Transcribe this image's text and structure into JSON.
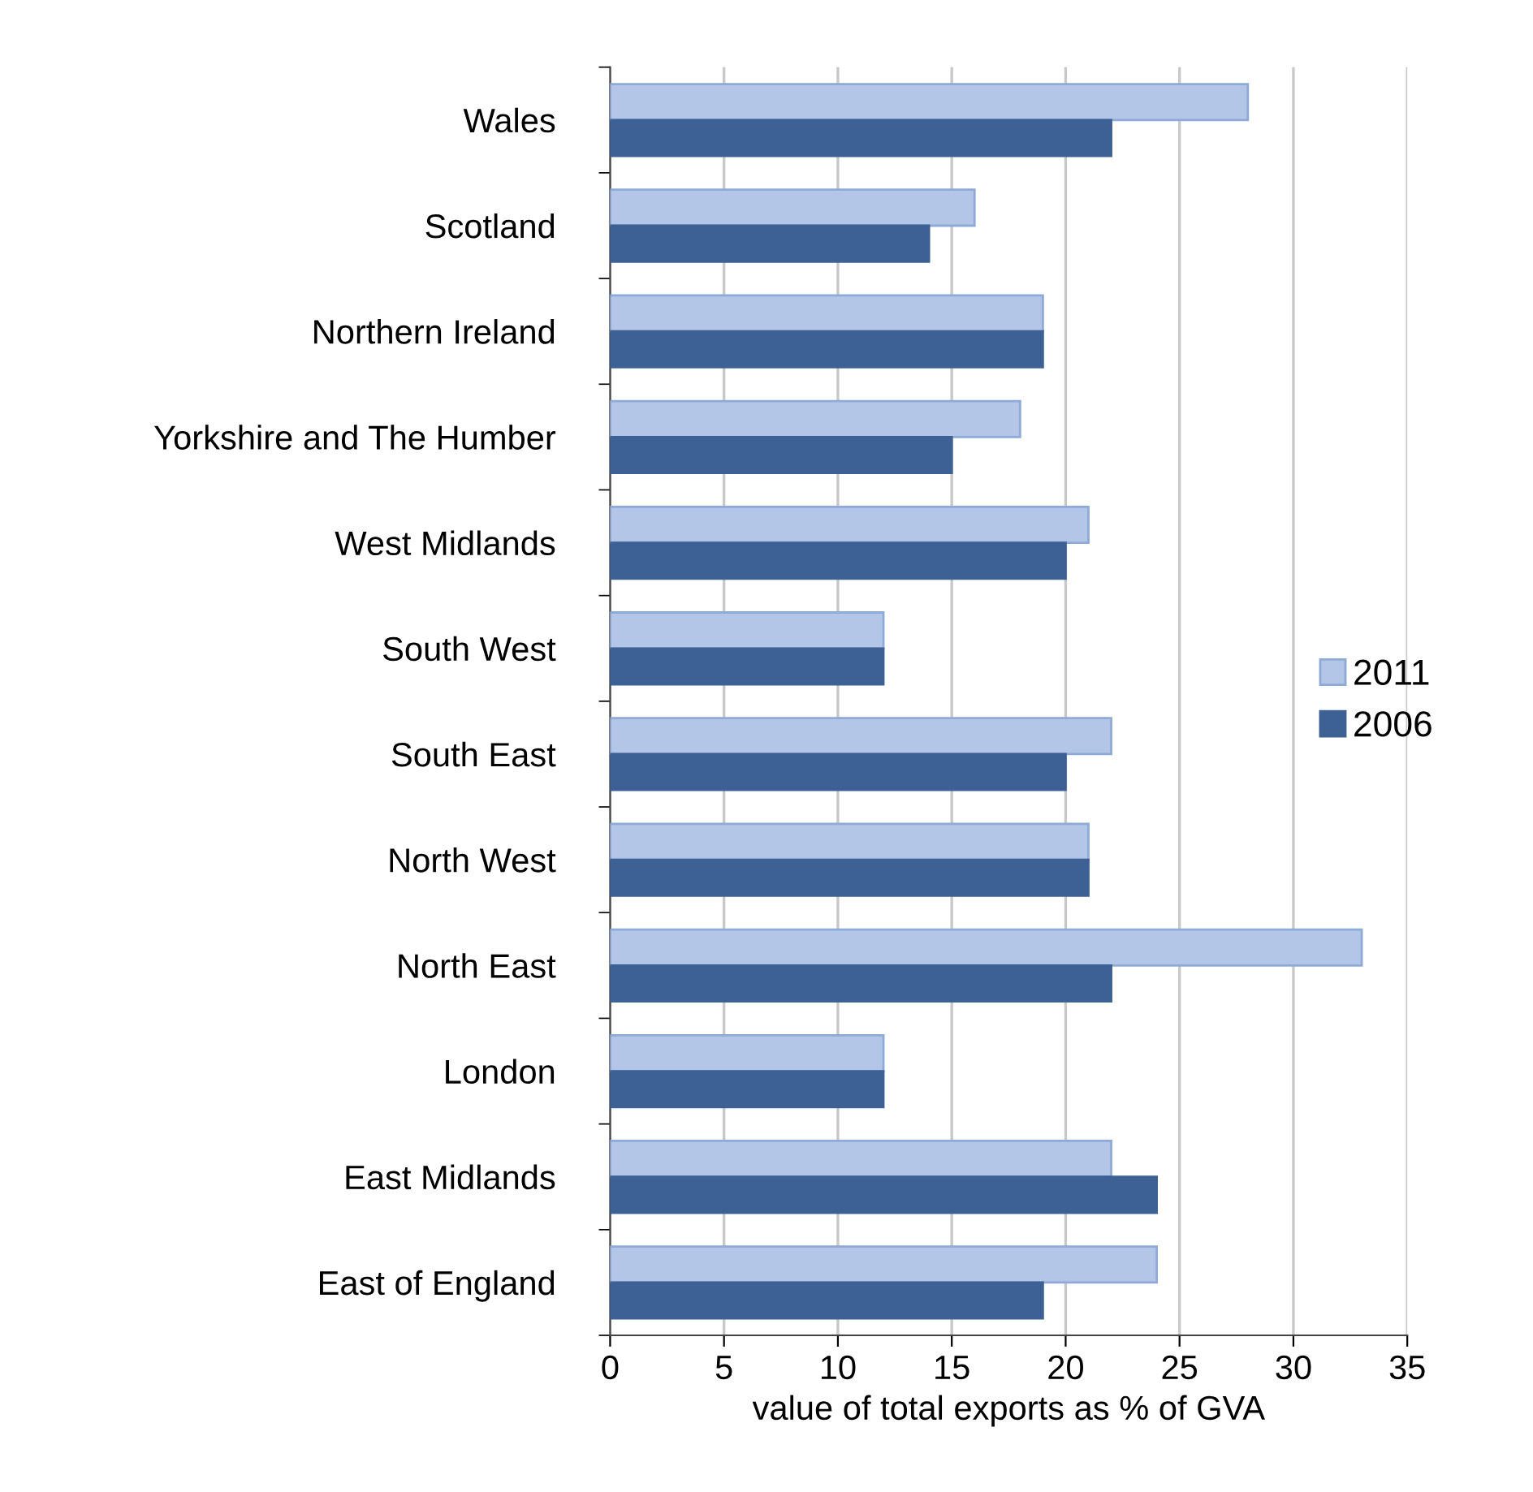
{
  "chart_data": {
    "type": "bar",
    "orientation": "horizontal",
    "xlabel": "value of total exports as % of GVA",
    "categories": [
      "Wales",
      "Scotland",
      "Northern Ireland",
      "Yorkshire and The Humber",
      "West Midlands",
      "South West",
      "South East",
      "North West",
      "North East",
      "London",
      "East Midlands",
      "East of England"
    ],
    "series": [
      {
        "name": "2011",
        "color": "#b3c6e7",
        "values": [
          28,
          16,
          19,
          18,
          21,
          12,
          22,
          21,
          33,
          12,
          22,
          24
        ]
      },
      {
        "name": "2006",
        "color": "#3d6194",
        "values": [
          22,
          14,
          19,
          15,
          20,
          12,
          20,
          21,
          22,
          12,
          24,
          19
        ]
      }
    ],
    "xlim": [
      0,
      35
    ],
    "xticks": [
      0,
      5,
      10,
      15,
      20,
      25,
      30,
      35
    ],
    "grid": "x",
    "legend": "right"
  }
}
